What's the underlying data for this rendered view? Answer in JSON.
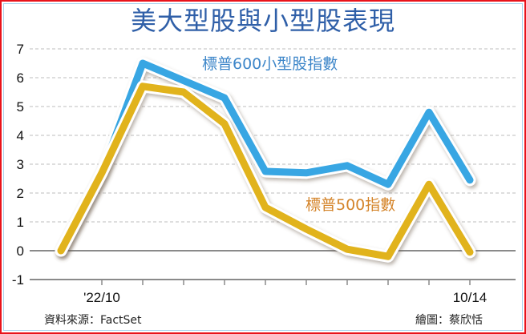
{
  "title": "美大型股與小型股表現",
  "footer": {
    "source": "資料來源：FactSet",
    "credit": "繪圖：蔡欣恬"
  },
  "colors": {
    "small_cap": "#37a6e3",
    "sp500": "#e1b31f",
    "sp500_label": "#d4842a",
    "small_cap_label": "#3d86c9",
    "title": "#2f5fa8",
    "frame_outer": "#e8131b",
    "frame_inner": "#a9d3ee"
  },
  "chart_data": {
    "type": "line",
    "title": "美大型股與小型股表現",
    "xlabel": "",
    "ylabel": "",
    "ylim": [
      -1,
      7
    ],
    "yticks": [
      -1,
      0,
      1,
      2,
      3,
      4,
      5,
      6,
      7
    ],
    "x_tick_labels": [
      {
        "index": 1,
        "label": "'22/10"
      },
      {
        "index": 10,
        "label": "10/14"
      }
    ],
    "x": [
      0,
      1,
      2,
      3,
      4,
      5,
      6,
      7,
      8,
      9,
      10
    ],
    "grid": true,
    "series": [
      {
        "name": "標普600小型股指數",
        "color": "#37a6e3",
        "values": [
          0,
          2.7,
          6.5,
          5.9,
          5.3,
          2.75,
          2.7,
          2.95,
          2.3,
          4.8,
          2.45
        ]
      },
      {
        "name": "標普500指數",
        "color": "#e1b31f",
        "values": [
          0,
          2.7,
          5.7,
          5.5,
          4.4,
          1.5,
          0.75,
          0.05,
          -0.2,
          2.3,
          -0.05
        ]
      }
    ],
    "annotations": [
      {
        "text": "標普600小型股指數",
        "series": 0
      },
      {
        "text": "標普500指數",
        "series": 1
      }
    ]
  }
}
